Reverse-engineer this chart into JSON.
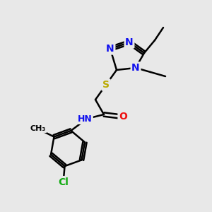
{
  "bg_color": "#e8e8e8",
  "atom_colors": {
    "C": "#000000",
    "N": "#1010ee",
    "O": "#ee1010",
    "S": "#bbaa00",
    "Cl": "#10aa10"
  },
  "bond_color": "#000000",
  "bond_width": 1.8,
  "font_size_atom": 10
}
